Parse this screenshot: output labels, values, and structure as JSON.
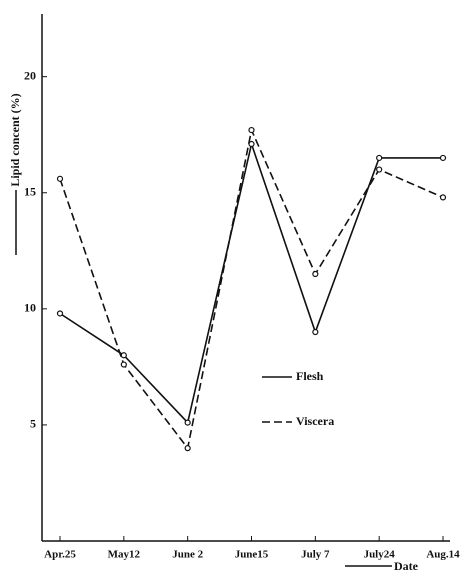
{
  "chart_data": {
    "type": "line",
    "x_label": "Date",
    "y_label": "Lipid concent (%)",
    "categories": [
      "Apr.25",
      "May12",
      "June 2",
      "June15",
      "July 7",
      "July24",
      "Aug.14"
    ],
    "series": [
      {
        "name": "Flesh",
        "color": "#111111",
        "dash": false,
        "values": [
          9.8,
          8.0,
          5.1,
          17.1,
          9.0,
          16.5,
          16.5
        ]
      },
      {
        "name": "Viscera",
        "color": "#111111",
        "dash": true,
        "values": [
          15.6,
          7.6,
          4.0,
          17.7,
          11.5,
          16.0,
          14.8
        ]
      }
    ],
    "ylim": [
      0,
      22.7
    ],
    "yticks": [
      5,
      10,
      15,
      20
    ],
    "grid": false,
    "legend": "center-right"
  }
}
